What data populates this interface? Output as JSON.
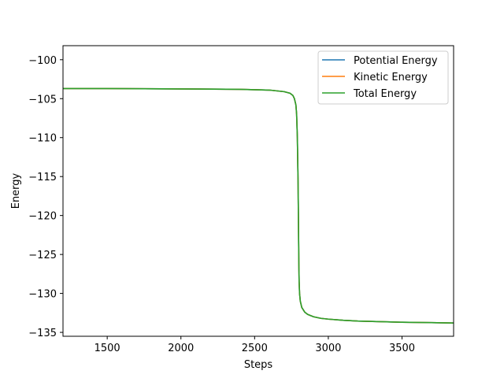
{
  "chart_data": {
    "type": "line",
    "title": "",
    "xlabel": "Steps",
    "ylabel": "Energy",
    "xlim": [
      1200,
      3850
    ],
    "ylim": [
      -135.5,
      -98.2
    ],
    "xticks": [
      1500,
      2000,
      2500,
      3000,
      3500
    ],
    "yticks": [
      -100,
      -105,
      -110,
      -115,
      -120,
      -125,
      -130,
      -135
    ],
    "grid": false,
    "legend_position": "top-right",
    "x": [
      1200,
      1500,
      2000,
      2400,
      2600,
      2700,
      2740,
      2760,
      2770,
      2780,
      2785,
      2790,
      2795,
      2798,
      2800,
      2802,
      2805,
      2810,
      2820,
      2840,
      2860,
      2900,
      2950,
      3000,
      3100,
      3200,
      3300,
      3400,
      3500,
      3600,
      3700,
      3850
    ],
    "series": [
      {
        "name": "Potential Energy",
        "color": "#1f77b4",
        "values": [
          -103.7,
          -103.7,
          -103.75,
          -103.8,
          -103.9,
          -104.1,
          -104.3,
          -104.6,
          -105.0,
          -105.8,
          -107.0,
          -110.0,
          -116.0,
          -122.0,
          -126.0,
          -128.5,
          -130.0,
          -131.0,
          -131.8,
          -132.4,
          -132.7,
          -133.0,
          -133.2,
          -133.3,
          -133.45,
          -133.55,
          -133.6,
          -133.65,
          -133.7,
          -133.72,
          -133.75,
          -133.8
        ]
      },
      {
        "name": "Kinetic Energy",
        "color": "#ff7f0e",
        "values": [
          -103.7,
          -103.7,
          -103.75,
          -103.8,
          -103.9,
          -104.1,
          -104.3,
          -104.6,
          -105.0,
          -105.8,
          -107.0,
          -110.0,
          -116.0,
          -122.0,
          -126.0,
          -128.5,
          -130.0,
          -131.0,
          -131.8,
          -132.4,
          -132.7,
          -133.0,
          -133.2,
          -133.3,
          -133.45,
          -133.55,
          -133.6,
          -133.65,
          -133.7,
          -133.72,
          -133.75,
          -133.8
        ]
      },
      {
        "name": "Total Energy",
        "color": "#2ca02c",
        "values": [
          -103.7,
          -103.7,
          -103.75,
          -103.8,
          -103.9,
          -104.1,
          -104.3,
          -104.6,
          -105.0,
          -105.8,
          -107.0,
          -110.0,
          -116.0,
          -122.0,
          -126.0,
          -128.5,
          -130.0,
          -131.0,
          -131.8,
          -132.4,
          -132.7,
          -133.0,
          -133.2,
          -133.3,
          -133.45,
          -133.55,
          -133.6,
          -133.65,
          -133.7,
          -133.72,
          -133.75,
          -133.8
        ]
      }
    ]
  }
}
